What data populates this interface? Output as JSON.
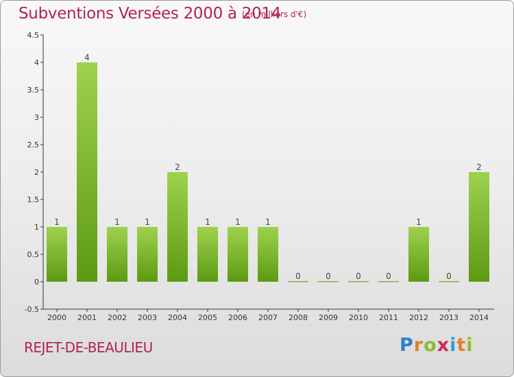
{
  "header": {
    "title": "Subventions Versées 2000 à 2014",
    "unit": "(en milliers d'€)"
  },
  "footer": {
    "commune": "REJET-DE-BEAULIEU",
    "logo_letters": [
      "P",
      "r",
      "o",
      "x",
      "i",
      "t",
      "i"
    ],
    "logo_colors": [
      "#2a7fc9",
      "#e2802a",
      "#8dbb2c",
      "#d4265a",
      "#2a9fd6",
      "#e2802a",
      "#8dbb2c"
    ]
  },
  "colors": {
    "title": "#b3205c",
    "bar_top": "#9fd24e",
    "bar_bottom": "#5c9a12"
  },
  "chart_data": {
    "type": "bar",
    "categories": [
      "2000",
      "2001",
      "2002",
      "2003",
      "2004",
      "2005",
      "2006",
      "2007",
      "2008",
      "2009",
      "2010",
      "2011",
      "2012",
      "2013",
      "2014"
    ],
    "values": [
      1,
      4,
      1,
      1,
      2,
      1,
      1,
      1,
      0,
      0,
      0,
      0,
      1,
      0,
      2
    ],
    "data_labels": [
      "1",
      "4",
      "1",
      "1",
      "2",
      "1",
      "1",
      "1",
      "0",
      "0",
      "0",
      "0",
      "1",
      "0",
      "2"
    ],
    "y_ticks": [
      "-0.5",
      "0",
      "0.5",
      "1",
      "1.5",
      "2",
      "2.5",
      "3",
      "3.5",
      "4",
      "4.5"
    ],
    "ylim": [
      -0.5,
      4.5
    ],
    "grid": false,
    "legend": "none"
  }
}
